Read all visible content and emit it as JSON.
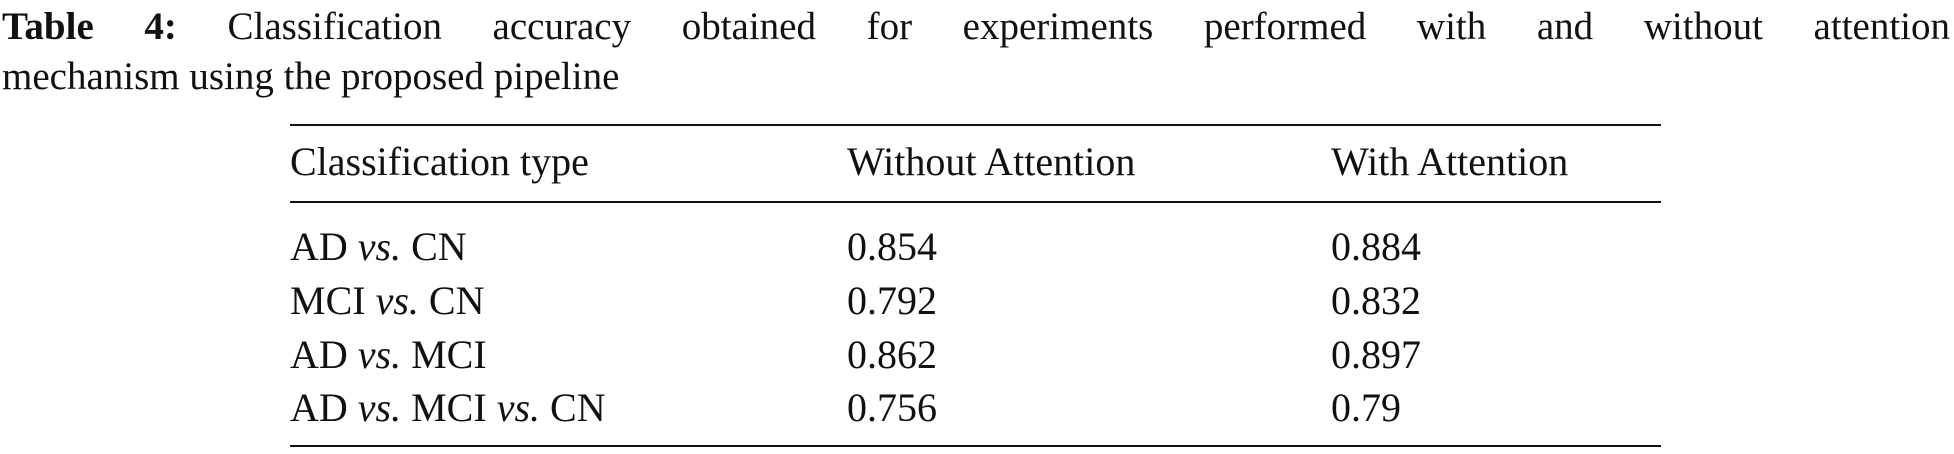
{
  "caption": {
    "label": "Table 4:",
    "lines": [
      "Classification accuracy obtained for experiments performed with and without attention",
      "mechanism using the proposed pipeline"
    ]
  },
  "table": {
    "header": [
      "Classification type",
      "Without Attention",
      "With Attention"
    ],
    "rows": [
      [
        [
          {
            "text": "AD"
          },
          {
            "text": "vs.",
            "italic": true
          },
          {
            "text": "CN"
          }
        ],
        0.854,
        0.884
      ],
      [
        [
          {
            "text": "MCI"
          },
          {
            "text": "vs.",
            "italic": true
          },
          {
            "text": "CN"
          }
        ],
        0.792,
        0.832
      ],
      [
        [
          {
            "text": "AD"
          },
          {
            "text": "vs.",
            "italic": true
          },
          {
            "text": "MCI"
          }
        ],
        0.862,
        0.897
      ],
      [
        [
          {
            "text": "AD"
          },
          {
            "text": "vs.",
            "italic": true
          },
          {
            "text": "MCI"
          },
          {
            "text": "vs.",
            "italic": true
          },
          {
            "text": "CN"
          }
        ],
        0.756,
        0.79
      ]
    ]
  }
}
